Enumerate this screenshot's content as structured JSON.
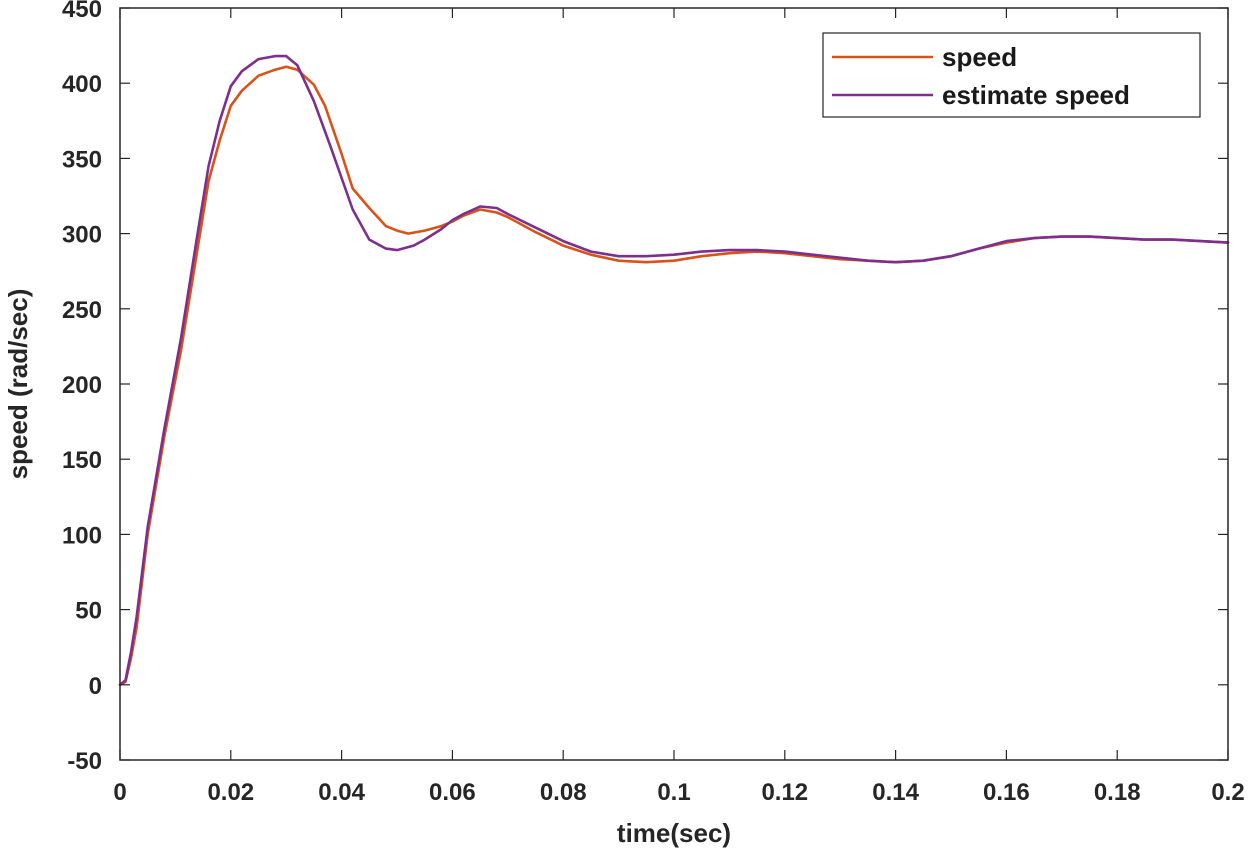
{
  "chart_data": {
    "type": "line",
    "title": "",
    "xlabel": "time(sec)",
    "ylabel": "speed (rad/sec)",
    "xlim": [
      0,
      0.2
    ],
    "ylim": [
      -50,
      450
    ],
    "grid": false,
    "legend_position": "top-right",
    "xticks": [
      0,
      0.02,
      0.04,
      0.06,
      0.08,
      0.1,
      0.12,
      0.14,
      0.16,
      0.18,
      0.2
    ],
    "xtick_labels": [
      "0",
      "0.02",
      "0.04",
      "0.06",
      "0.08",
      "0.1",
      "0.12",
      "0.14",
      "0.16",
      "0.18",
      "0.2"
    ],
    "yticks": [
      -50,
      0,
      50,
      100,
      150,
      200,
      250,
      300,
      350,
      400,
      450
    ],
    "ytick_labels": [
      "-50",
      "0",
      "50",
      "100",
      "150",
      "200",
      "250",
      "300",
      "350",
      "400",
      "450"
    ],
    "series": [
      {
        "name": "speed",
        "color": "#D95319",
        "x": [
          0,
          0.001,
          0.002,
          0.003,
          0.005,
          0.008,
          0.011,
          0.014,
          0.016,
          0.018,
          0.02,
          0.022,
          0.025,
          0.028,
          0.03,
          0.032,
          0.035,
          0.037,
          0.04,
          0.042,
          0.045,
          0.048,
          0.05,
          0.052,
          0.055,
          0.058,
          0.06,
          0.062,
          0.065,
          0.068,
          0.07,
          0.075,
          0.08,
          0.085,
          0.09,
          0.095,
          0.1,
          0.105,
          0.11,
          0.115,
          0.12,
          0.125,
          0.13,
          0.135,
          0.14,
          0.145,
          0.15,
          0.155,
          0.16,
          0.165,
          0.17,
          0.175,
          0.18,
          0.185,
          0.19,
          0.195,
          0.2
        ],
        "values": [
          0,
          2,
          18,
          38,
          100,
          165,
          222,
          290,
          335,
          362,
          385,
          395,
          405,
          409,
          411,
          409,
          399,
          385,
          353,
          330,
          317,
          305,
          302,
          300,
          302,
          305,
          308,
          312,
          316,
          314,
          311,
          301,
          292,
          286,
          282,
          281,
          282,
          285,
          287,
          288,
          287,
          285,
          283,
          282,
          281,
          282,
          285,
          290,
          294,
          297,
          298,
          298,
          297,
          296,
          296,
          295,
          294
        ]
      },
      {
        "name": "estimate speed",
        "color": "#7E2F8E",
        "x": [
          0,
          0.001,
          0.002,
          0.003,
          0.005,
          0.008,
          0.011,
          0.014,
          0.016,
          0.018,
          0.02,
          0.022,
          0.025,
          0.028,
          0.03,
          0.032,
          0.035,
          0.038,
          0.04,
          0.042,
          0.045,
          0.048,
          0.05,
          0.053,
          0.055,
          0.058,
          0.06,
          0.062,
          0.065,
          0.068,
          0.07,
          0.075,
          0.08,
          0.085,
          0.09,
          0.095,
          0.1,
          0.105,
          0.11,
          0.115,
          0.12,
          0.125,
          0.13,
          0.135,
          0.14,
          0.145,
          0.15,
          0.155,
          0.16,
          0.165,
          0.17,
          0.175,
          0.18,
          0.185,
          0.19,
          0.195,
          0.2
        ],
        "values": [
          0,
          3,
          22,
          45,
          105,
          170,
          230,
          300,
          345,
          375,
          398,
          408,
          416,
          418,
          418,
          412,
          388,
          358,
          337,
          316,
          296,
          290,
          289,
          292,
          296,
          303,
          309,
          313,
          318,
          317,
          313,
          304,
          295,
          288,
          285,
          285,
          286,
          288,
          289,
          289,
          288,
          286,
          284,
          282,
          281,
          282,
          285,
          290,
          295,
          297,
          298,
          298,
          297,
          296,
          296,
          295,
          294
        ]
      }
    ]
  }
}
